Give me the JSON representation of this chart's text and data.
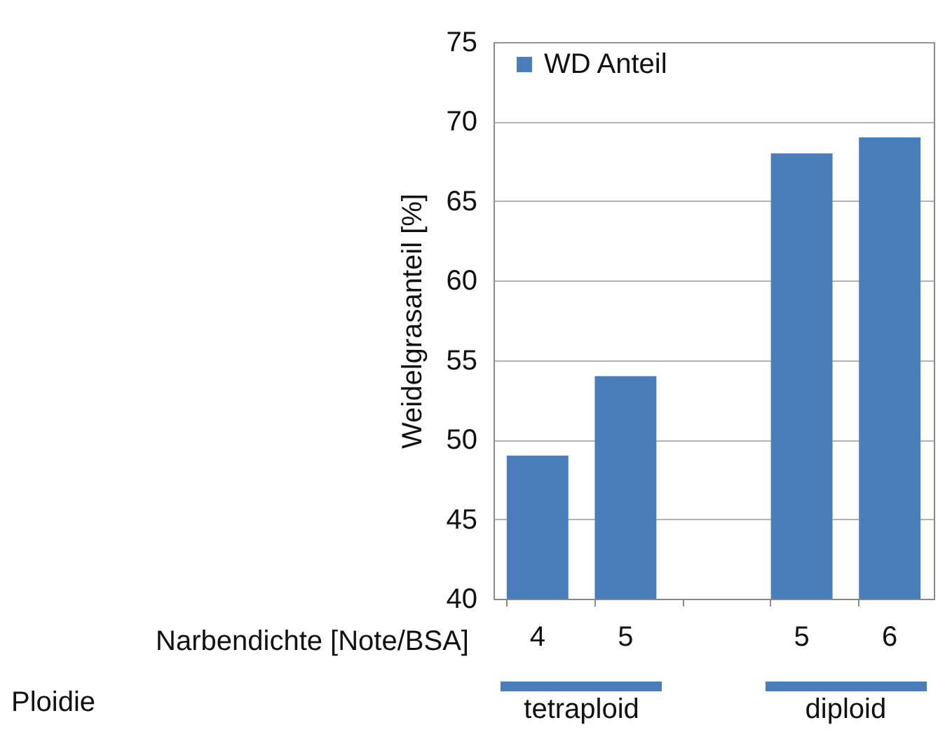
{
  "chart_data": {
    "type": "bar",
    "categories": [
      "4",
      "5",
      null,
      "5",
      "6"
    ],
    "series": [
      {
        "name": "WD Anteil",
        "color": "#4a7ebb",
        "values": [
          49,
          54,
          null,
          68,
          69
        ]
      }
    ],
    "xlabel": "Narbendichte [Note/BSA]",
    "ylabel": "Weidelgrasanteil [%]",
    "annotations": [
      "Ploidie",
      "tetraploid",
      "diploid"
    ],
    "ylim": [
      40,
      75
    ],
    "yticks": [
      40,
      45,
      50,
      55,
      60,
      65,
      70,
      75
    ],
    "grid": "y",
    "legend": "top left"
  }
}
